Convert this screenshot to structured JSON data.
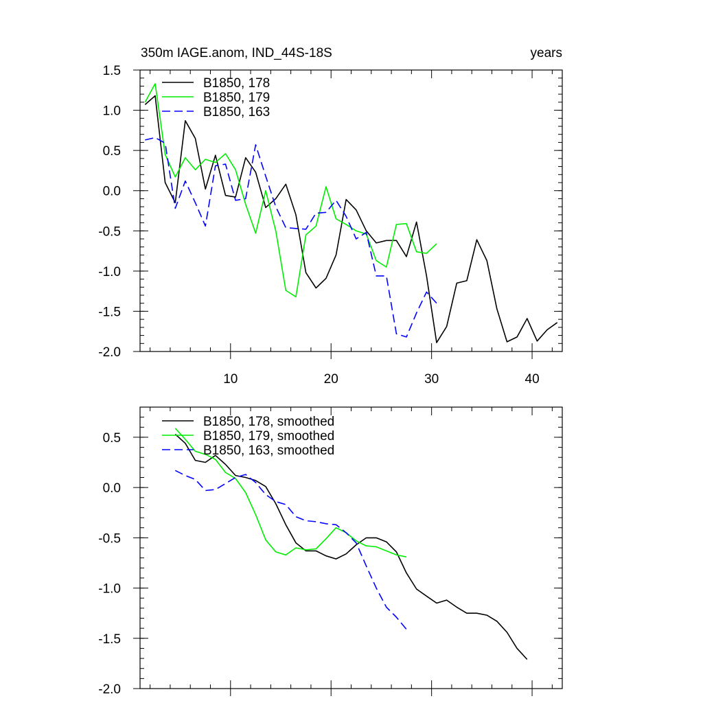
{
  "chart_data": [
    {
      "type": "line",
      "title": "350m IAGE.anom, IND_44S-18S",
      "units": "years",
      "xlim": [
        1,
        43
      ],
      "ylim": [
        -2.0,
        1.5
      ],
      "xticks": [
        10,
        20,
        30,
        40
      ],
      "xtick_labels": [
        "10",
        "20",
        "30",
        "40"
      ],
      "yticks": [
        -2.0,
        -1.5,
        -1.0,
        -0.5,
        0.0,
        0.5,
        1.0,
        1.5
      ],
      "ytick_labels": [
        "-2.0",
        "-1.5",
        "-1.0",
        "-0.5",
        "0.0",
        "0.5",
        "1.0",
        "1.5"
      ],
      "legend_position": "top-left",
      "series": [
        {
          "name": "B1850, 178",
          "color": "#000000",
          "dash": "solid",
          "x": [
            1.5,
            2.5,
            3.5,
            4.5,
            5.5,
            6.5,
            7.5,
            8.5,
            9.5,
            10.5,
            11.5,
            12.5,
            13.5,
            14.5,
            15.5,
            16.5,
            17.5,
            18.5,
            19.5,
            20.5,
            21.5,
            22.5,
            23.5,
            24.5,
            25.5,
            26.5,
            27.5,
            28.5,
            29.5,
            30.5,
            31.5,
            32.5,
            33.5,
            34.5,
            35.5,
            36.5,
            37.5,
            38.5,
            39.5,
            40.5,
            41.5,
            42.5
          ],
          "y": [
            1.07,
            1.18,
            0.1,
            -0.15,
            0.87,
            0.65,
            0.02,
            0.44,
            -0.06,
            -0.08,
            0.41,
            0.23,
            -0.21,
            -0.1,
            0.08,
            -0.3,
            -1.02,
            -1.21,
            -1.09,
            -0.8,
            -0.11,
            -0.24,
            -0.5,
            -0.65,
            -0.62,
            -0.62,
            -0.82,
            -0.39,
            -1.06,
            -1.89,
            -1.69,
            -1.15,
            -1.12,
            -0.61,
            -0.87,
            -1.47,
            -1.88,
            -1.82,
            -1.59,
            -1.87,
            -1.73,
            -1.64
          ]
        },
        {
          "name": "B1850, 179",
          "color": "#00ee00",
          "dash": "solid",
          "x": [
            1.5,
            2.5,
            3.5,
            4.5,
            5.5,
            6.5,
            7.5,
            8.5,
            9.5,
            10.5,
            11.5,
            12.5,
            13.5,
            14.5,
            15.5,
            16.5,
            17.5,
            18.5,
            19.5,
            20.5,
            21.5,
            22.5,
            23.5,
            24.5,
            25.5,
            26.5,
            27.5,
            28.5,
            29.5,
            30.5
          ],
          "y": [
            1.1,
            1.33,
            0.45,
            0.17,
            0.41,
            0.26,
            0.39,
            0.35,
            0.46,
            0.26,
            -0.17,
            -0.53,
            0.0,
            -0.5,
            -1.24,
            -1.32,
            -0.55,
            -0.44,
            0.05,
            -0.35,
            -0.42,
            -0.5,
            -0.54,
            -0.87,
            -0.95,
            -0.42,
            -0.41,
            -0.76,
            -0.78,
            -0.66
          ]
        },
        {
          "name": "B1850, 163",
          "color": "#0000ff",
          "dash": "dashed",
          "x": [
            1.5,
            2.5,
            3.5,
            4.5,
            5.5,
            6.5,
            7.5,
            8.5,
            9.5,
            10.5,
            11.5,
            12.5,
            13.5,
            14.5,
            15.5,
            16.5,
            17.5,
            18.5,
            19.5,
            20.5,
            21.5,
            22.5,
            23.5,
            24.5,
            25.5,
            26.5,
            27.5,
            28.5,
            29.5,
            30.5
          ],
          "y": [
            0.63,
            0.66,
            0.59,
            -0.22,
            0.12,
            -0.15,
            -0.44,
            0.31,
            0.33,
            -0.12,
            -0.1,
            0.57,
            0.18,
            -0.2,
            -0.46,
            -0.47,
            -0.48,
            -0.28,
            -0.27,
            -0.12,
            -0.32,
            -0.6,
            -0.52,
            -1.06,
            -1.06,
            -1.78,
            -1.82,
            -1.52,
            -1.26,
            -1.4
          ]
        }
      ]
    },
    {
      "type": "line",
      "title": "",
      "xlim": [
        1,
        43
      ],
      "ylim": [
        -2.0,
        0.8
      ],
      "xticks": [
        10,
        20,
        30,
        40
      ],
      "xtick_labels": [],
      "yticks": [
        -2.0,
        -1.5,
        -1.0,
        -0.5,
        0.0,
        0.5
      ],
      "ytick_labels": [
        "-2.0",
        "-1.5",
        "-1.0",
        "-0.5",
        "0.0",
        "0.5"
      ],
      "legend_position": "top-left",
      "series": [
        {
          "name": "B1850, 178, smoothed",
          "color": "#000000",
          "dash": "solid",
          "x": [
            4.5,
            5.5,
            6.5,
            7.5,
            8.5,
            9.5,
            10.5,
            11.5,
            12.5,
            13.5,
            14.5,
            15.5,
            16.5,
            17.5,
            18.5,
            19.5,
            20.5,
            21.5,
            22.5,
            23.5,
            24.5,
            25.5,
            26.5,
            27.5,
            28.5,
            29.5,
            30.5,
            31.5,
            32.5,
            33.5,
            34.5,
            35.5,
            36.5,
            37.5,
            38.5,
            39.5
          ],
          "y": [
            0.53,
            0.44,
            0.27,
            0.25,
            0.32,
            0.23,
            0.12,
            0.1,
            0.07,
            0.01,
            -0.16,
            -0.37,
            -0.55,
            -0.63,
            -0.63,
            -0.68,
            -0.71,
            -0.66,
            -0.57,
            -0.5,
            -0.5,
            -0.54,
            -0.64,
            -0.85,
            -1.01,
            -1.08,
            -1.15,
            -1.12,
            -1.19,
            -1.25,
            -1.25,
            -1.27,
            -1.33,
            -1.44,
            -1.6,
            -1.71
          ]
        },
        {
          "name": "B1850, 179, smoothed",
          "color": "#00ee00",
          "dash": "solid",
          "x": [
            4.5,
            5.5,
            6.5,
            7.5,
            8.5,
            9.5,
            10.5,
            11.5,
            12.5,
            13.5,
            14.5,
            15.5,
            16.5,
            17.5,
            18.5,
            19.5,
            20.5,
            21.5,
            22.5,
            23.5,
            24.5,
            25.5,
            26.5,
            27.5
          ],
          "y": [
            0.59,
            0.48,
            0.36,
            0.33,
            0.28,
            0.15,
            0.09,
            -0.05,
            -0.27,
            -0.52,
            -0.64,
            -0.67,
            -0.6,
            -0.62,
            -0.61,
            -0.51,
            -0.4,
            -0.45,
            -0.53,
            -0.58,
            -0.59,
            -0.63,
            -0.67,
            -0.69
          ]
        },
        {
          "name": "B1850, 163, smoothed",
          "color": "#0000ff",
          "dash": "dashed",
          "x": [
            4.5,
            5.5,
            6.5,
            7.5,
            8.5,
            9.5,
            10.5,
            11.5,
            12.5,
            13.5,
            14.5,
            15.5,
            16.5,
            17.5,
            18.5,
            19.5,
            20.5,
            21.5,
            22.5,
            23.5,
            24.5,
            25.5,
            26.5,
            27.5
          ],
          "y": [
            0.17,
            0.12,
            0.08,
            -0.03,
            -0.02,
            0.04,
            0.1,
            0.13,
            0.05,
            -0.07,
            -0.14,
            -0.17,
            -0.29,
            -0.33,
            -0.34,
            -0.36,
            -0.37,
            -0.45,
            -0.55,
            -0.78,
            -1.0,
            -1.19,
            -1.29,
            -1.41
          ]
        }
      ]
    }
  ]
}
